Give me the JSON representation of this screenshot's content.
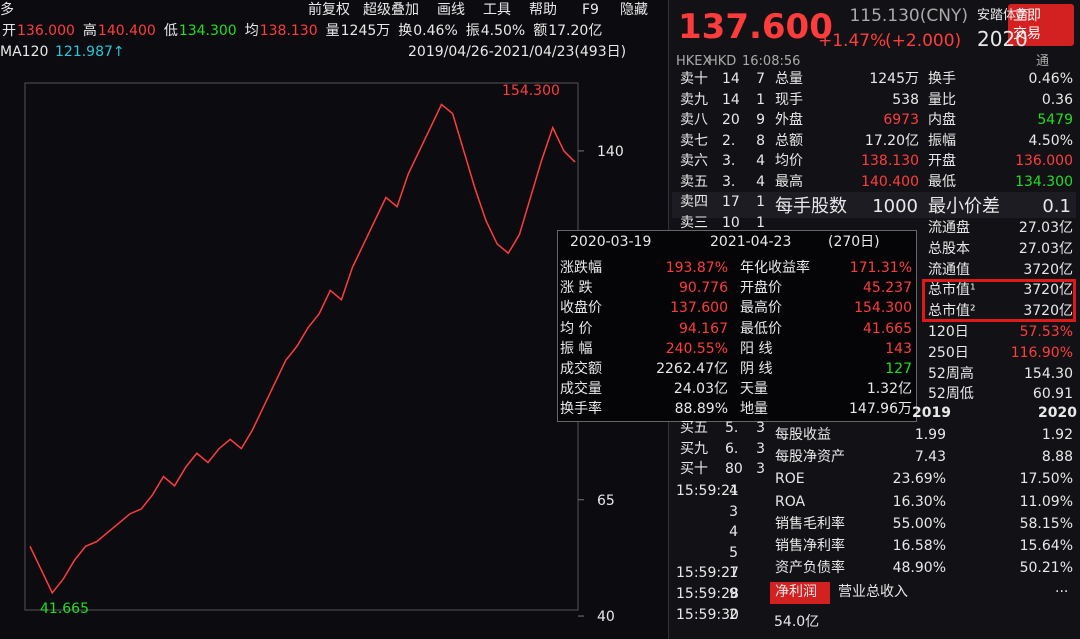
{
  "toolbar": {
    "side": "多",
    "quote": [
      [
        "开",
        "136.000"
      ],
      [
        "高",
        "140.400"
      ],
      [
        "低",
        "134.300"
      ],
      [
        "均",
        "138.130"
      ],
      [
        "量",
        "1245万"
      ],
      [
        "换",
        "0.46%"
      ],
      [
        "振",
        "4.50%"
      ],
      [
        "额",
        "17.20亿"
      ]
    ],
    "menu": [
      "前复权",
      "超级叠加",
      "画线",
      "工具",
      "帮助",
      "F9",
      "隐藏"
    ]
  },
  "ma": {
    "label": "MA120",
    "value": "121.987↑"
  },
  "range": "2019/04/26-2021/04/23(493日)",
  "chart_data": {
    "type": "line",
    "values": [
      55,
      50,
      45,
      48,
      52,
      55,
      56,
      58,
      60,
      62,
      63,
      66,
      70,
      68,
      72,
      75,
      73,
      76,
      78,
      76,
      80,
      85,
      90,
      95,
      98,
      102,
      105,
      110,
      108,
      115,
      120,
      125,
      130,
      128,
      135,
      140,
      145,
      150,
      148,
      140,
      132,
      125,
      120,
      118,
      122,
      130,
      138,
      145,
      140,
      137.6
    ],
    "ylim": [
      41.3,
      154.6
    ],
    "yticks": [
      140,
      65,
      40
    ],
    "color": "#ff3c3c",
    "high_label": "154.300",
    "low_label": "41.665"
  },
  "popup": {
    "from": "2020-03-19",
    "to": "2021-04-23",
    "days": "(270日)",
    "rows": [
      [
        "涨跌幅",
        "193.87%",
        "年化收益率",
        "171.31%"
      ],
      [
        "涨 跌",
        "90.776",
        "开盘价",
        "45.237"
      ],
      [
        "收盘价",
        "137.600",
        "最高价",
        "154.300"
      ],
      [
        "均 价",
        "94.167",
        "最低价",
        "41.665"
      ],
      [
        "振 幅",
        "240.55%",
        "阳 线",
        "143"
      ],
      [
        "成交额",
        "2262.47亿",
        "阴 线",
        "127"
      ],
      [
        "成交量",
        "24.03亿",
        "天量",
        "1.32亿"
      ],
      [
        "换手率",
        "88.89%",
        "地量",
        "147.96万"
      ]
    ]
  },
  "quote": {
    "price": "137.600",
    "cny": "115.130(CNY)",
    "name": "安踏体育",
    "year": "2020",
    "change": "+1.47%",
    "change_abs": "(+2.000)",
    "trade": "立即交易"
  },
  "header": {
    "exchange": "HKEX",
    "currency": "HKD",
    "time": "16:08:56",
    "flag": "通"
  },
  "asks": [
    [
      "卖十",
      "14",
      "7"
    ],
    [
      "卖九",
      "14",
      "1"
    ],
    [
      "卖八",
      "20",
      "9"
    ],
    [
      "卖七",
      "2.",
      "8"
    ],
    [
      "卖六",
      "3.",
      "4"
    ],
    [
      "卖五",
      "3.",
      "4"
    ],
    [
      "卖四",
      "17",
      "1"
    ],
    [
      "卖三",
      "10",
      "1"
    ]
  ],
  "stats": [
    [
      "总量",
      "1245万",
      "换手",
      "0.46%"
    ],
    [
      "现手",
      "538",
      "量比",
      "0.36"
    ],
    [
      "外盘",
      "6973",
      "内盘",
      "5479"
    ],
    [
      "总额",
      "17.20亿",
      "振幅",
      "4.50%"
    ],
    [
      "均价",
      "138.130",
      "开盘",
      "136.000"
    ],
    [
      "最高",
      "140.400",
      "最低",
      "134.300"
    ]
  ],
  "lot": [
    "每手股数",
    "1000",
    "最小价差",
    "0.1"
  ],
  "fundamentals": [
    [
      "流通盘",
      "27.03亿"
    ],
    [
      "总股本",
      "27.03亿"
    ],
    [
      "流通值",
      "3720亿"
    ],
    [
      "总市值¹",
      "3720亿"
    ],
    [
      "总市值²",
      "3720亿"
    ],
    [
      "120日",
      "57.53%"
    ],
    [
      "250日",
      "116.90%"
    ],
    [
      "52周高",
      "154.30"
    ],
    [
      "52周低",
      "60.91"
    ]
  ],
  "bids": [
    [
      "买五",
      "5.",
      "3"
    ],
    [
      "买九",
      "6.",
      "3"
    ],
    [
      "买十",
      "80",
      "3"
    ]
  ],
  "ticks": [
    [
      "15:59:21",
      "4"
    ],
    [
      "",
      "3"
    ],
    [
      "",
      "4"
    ],
    [
      "",
      "5"
    ],
    [
      "15:59:27",
      "1"
    ],
    [
      "15:59:28",
      "9"
    ],
    [
      "15:59:30",
      "2"
    ]
  ],
  "finance": {
    "years": [
      "2019",
      "2020"
    ],
    "rows": [
      [
        "每股收益",
        "1.99",
        "1.92"
      ],
      [
        "每股净资产",
        "7.43",
        "8.88"
      ],
      [
        "ROE",
        "23.69%",
        "17.50%"
      ],
      [
        "ROA",
        "16.30%",
        "11.09%"
      ],
      [
        "销售毛利率",
        "55.00%",
        "58.15%"
      ],
      [
        "销售净利率",
        "16.58%",
        "15.64%"
      ],
      [
        "资产负债率",
        "48.90%",
        "50.21%"
      ]
    ]
  },
  "tabs": [
    "净利润",
    "营业总收入",
    "···"
  ],
  "profit": "54.0亿"
}
